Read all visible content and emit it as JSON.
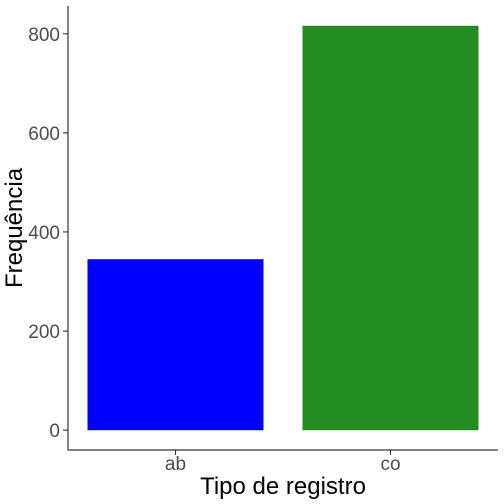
{
  "chart_data": {
    "type": "bar",
    "categories": [
      "ab",
      "co"
    ],
    "values": [
      345,
      816
    ],
    "colors": [
      "#0000ff",
      "#228b22"
    ],
    "xlabel": "Tipo de registro",
    "ylabel": "Frequência",
    "ylim": [
      -40,
      856
    ],
    "yticks": [
      0,
      200,
      400,
      600,
      800
    ],
    "ytick_labels": [
      "0",
      "200",
      "400",
      "600",
      "800"
    ],
    "grid": false,
    "legend": "none"
  }
}
